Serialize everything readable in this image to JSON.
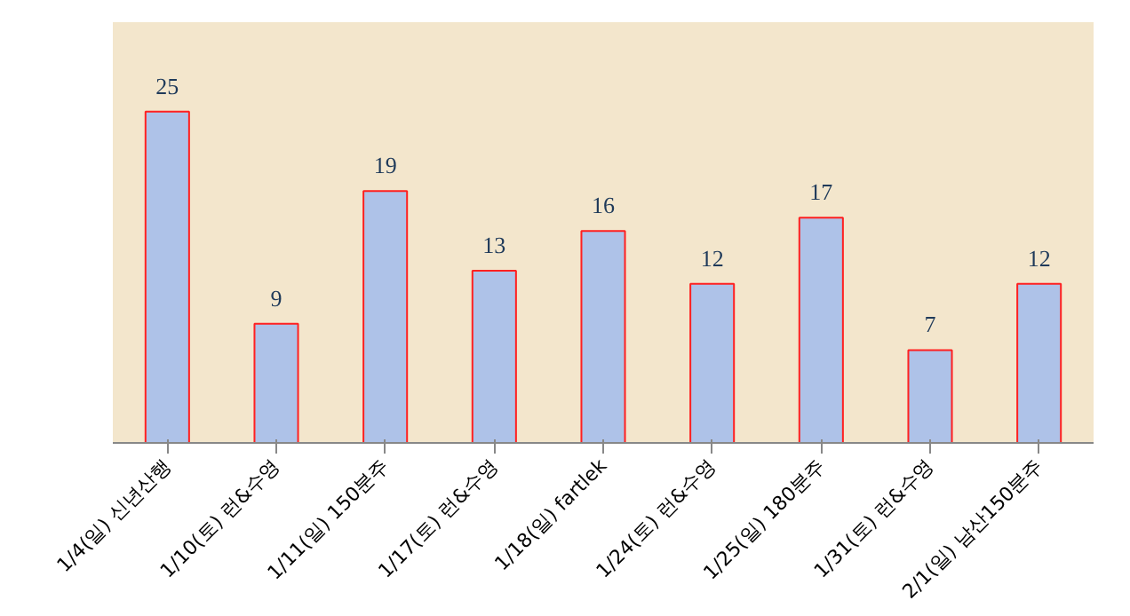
{
  "chart_data": {
    "type": "bar",
    "categories": [
      "1/4(일) 신년산행",
      "1/10(토) 런&수영",
      "1/11(일) 150분주",
      "1/17(토) 런&수영",
      "1/18(일) fartlek",
      "1/24(토) 런&수영",
      "1/25(일) 180분주",
      "1/31(토) 런&수영",
      "2/1(일) 남산150분주"
    ],
    "values": [
      25,
      9,
      19,
      13,
      16,
      12,
      17,
      7,
      12
    ],
    "color": "#aec2e8",
    "data_labels": true
  }
}
